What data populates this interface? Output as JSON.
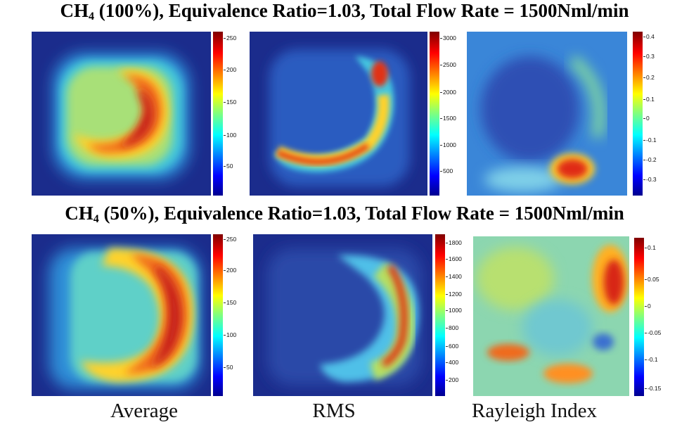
{
  "rows": [
    {
      "title_species": "CH",
      "title_sub": "4",
      "title_rest": " (100%), Equivalence Ratio=1.03, Total Flow Rate = 1500Nml/min",
      "colorbars": [
        [
          "250",
          "200",
          "150",
          "100",
          "50"
        ],
        [
          "3000",
          "2500",
          "2000",
          "1500",
          "1000",
          "500"
        ],
        [
          "0.4",
          "0.3",
          "0.2",
          "0.1",
          "0",
          "-0.1",
          "-0.2",
          "-0.3"
        ]
      ]
    },
    {
      "title_species": "CH",
      "title_sub": "4",
      "title_rest": " (50%), Equivalence Ratio=1.03, Total Flow Rate = 1500Nml/min",
      "colorbars": [
        [
          "250",
          "200",
          "150",
          "100",
          "50"
        ],
        [
          "1800",
          "1600",
          "1400",
          "1200",
          "1000",
          "800",
          "600",
          "400",
          "200"
        ],
        [
          "0.1",
          "0.05",
          "0",
          "-0.05",
          "-0.1",
          "-0.15"
        ]
      ]
    }
  ],
  "column_labels": [
    "Average",
    "RMS",
    "Rayleigh Index"
  ]
}
